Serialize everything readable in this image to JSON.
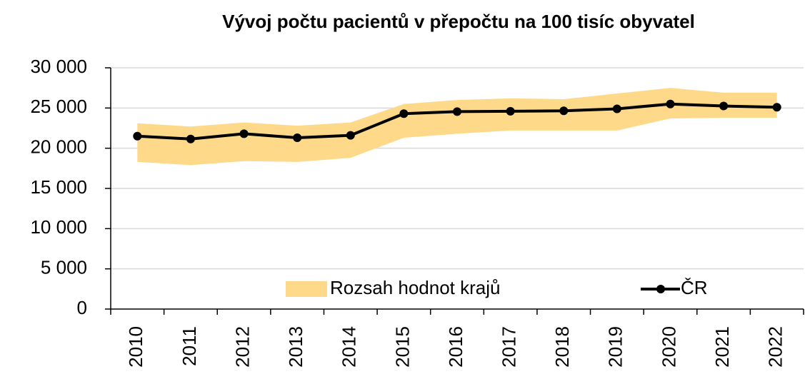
{
  "chart_data": {
    "type": "line",
    "title": "Vývoj počtu pacientů v přepočtu na 100 tisíc obyvatel",
    "categories": [
      "2010",
      "2011",
      "2012",
      "2013",
      "2014",
      "2015",
      "2016",
      "2017",
      "2018",
      "2019",
      "2020",
      "2021",
      "2022"
    ],
    "series": [
      {
        "name": "Rozsah hodnot krajů",
        "color": "#ffd98a",
        "type": "range",
        "low": [
          18300,
          17900,
          18400,
          18300,
          18800,
          21300,
          21800,
          22200,
          22200,
          22200,
          23700,
          23800,
          23800
        ],
        "high": [
          23100,
          22700,
          23200,
          22800,
          23200,
          25500,
          26000,
          26200,
          26100,
          26800,
          27500,
          26900,
          26900
        ]
      },
      {
        "name": "ČR",
        "color": "#000000",
        "values": [
          21500,
          21150,
          21800,
          21300,
          21600,
          24300,
          24550,
          24600,
          24650,
          24900,
          25500,
          25250,
          25100
        ]
      }
    ],
    "ylim": [
      0,
      30000
    ],
    "yticks": [
      0,
      {
        "value": 5000,
        "label": "5 000"
      },
      {
        "value": 10000,
        "label": "10 000"
      },
      {
        "value": 15000,
        "label": "15 000"
      },
      {
        "value": 20000,
        "label": "20 000"
      },
      {
        "value": 25000,
        "label": "25 000"
      },
      {
        "value": 30000,
        "label": "30 000"
      }
    ],
    "grid": true,
    "legend": "bottom"
  }
}
